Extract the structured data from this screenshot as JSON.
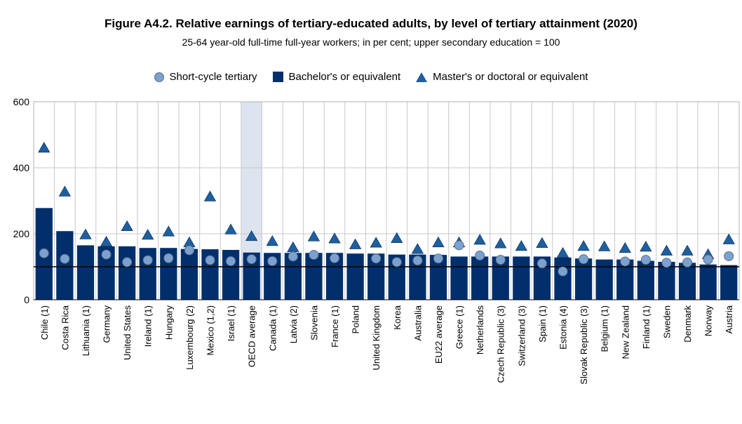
{
  "chart_data": {
    "type": "bar",
    "title": "Figure A4.2. Relative earnings of tertiary-educated adults, by level of tertiary attainment (2020)",
    "subtitle": "25-64 year-old full-time full-year workers; in per cent; upper secondary education = 100",
    "ylim": [
      0,
      600
    ],
    "yticks": [
      0,
      200,
      400,
      600
    ],
    "reference_line": 100,
    "legend_position": "top-center",
    "highlight_category": "OECD average",
    "categories": [
      "Chile (1)",
      "Costa Rica",
      "Lithuania (1)",
      "Germany",
      "United States",
      "Ireland (1)",
      "Hungary",
      "Luxembourg (2)",
      "Mexico (1,2)",
      "Israel (1)",
      "OECD average",
      "Canada (1)",
      "Latvia (2)",
      "Slovenia",
      "France (1)",
      "Poland",
      "United Kingdom",
      "Korea",
      "Australia",
      "EU22 average",
      "Greece (1)",
      "Netherlands",
      "Czech Republic (3)",
      "Switzerland (3)",
      "Spain (1)",
      "Estonia (4)",
      "Slovak Republic (3)",
      "Belgium (1)",
      "New Zealand",
      "Finland (1)",
      "Sweden",
      "Denmark",
      "Norway",
      "Austria"
    ],
    "series": [
      {
        "name": "Short-cycle tertiary",
        "marker": "circle",
        "color": "#7da1cf",
        "values": [
          141,
          124,
          null,
          137,
          114,
          120,
          126,
          150,
          120,
          117,
          123,
          117,
          131,
          136,
          126,
          null,
          125,
          114,
          119,
          125,
          165,
          134,
          121,
          null,
          110,
          86,
          123,
          null,
          116,
          121,
          112,
          113,
          122,
          132
        ]
      },
      {
        "name": "Bachelor's or equivalent",
        "marker": "bar",
        "color": "#002f6c",
        "values": [
          278,
          208,
          165,
          162,
          162,
          157,
          157,
          154,
          153,
          151,
          143,
          142,
          142,
          142,
          142,
          140,
          140,
          137,
          137,
          136,
          131,
          131,
          131,
          131,
          131,
          128,
          125,
          122,
          122,
          118,
          115,
          112,
          107,
          105
        ]
      },
      {
        "name": "Master's or doctoral or equivalent",
        "marker": "triangle",
        "color": "#1f5f9f",
        "values": [
          460,
          327,
          197,
          175,
          222,
          196,
          206,
          173,
          312,
          212,
          192,
          177,
          158,
          191,
          185,
          167,
          172,
          186,
          153,
          173,
          173,
          181,
          170,
          162,
          171,
          141,
          162,
          161,
          156,
          160,
          148,
          148,
          137,
          182
        ]
      }
    ]
  },
  "colors": {
    "bar": "#002f6c",
    "triangle": "#1f5f9f",
    "circle": "#7da1cf",
    "highlight": "#dde3ef",
    "grid": "#c8c8c8"
  }
}
